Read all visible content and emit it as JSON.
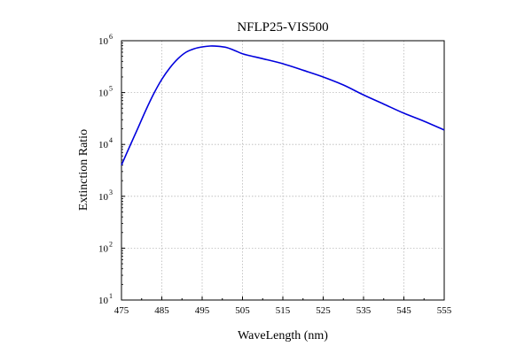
{
  "chart_data": {
    "type": "line",
    "title": "NFLP25-VIS500",
    "xlabel": "WaveLength (nm)",
    "ylabel": "Extinction Ratio",
    "xlim": [
      475,
      555
    ],
    "ylim": [
      10,
      1000000
    ],
    "yscale": "log",
    "grid": true,
    "grid_style": "dotted",
    "x_ticks": [
      475,
      485,
      495,
      505,
      515,
      525,
      535,
      545,
      555
    ],
    "y_ticks": [
      {
        "base": "10",
        "exp": "1",
        "value": 10
      },
      {
        "base": "10",
        "exp": "2",
        "value": 100
      },
      {
        "base": "10",
        "exp": "3",
        "value": 1000
      },
      {
        "base": "10",
        "exp": "4",
        "value": 10000
      },
      {
        "base": "10",
        "exp": "5",
        "value": 100000
      },
      {
        "base": "10",
        "exp": "6",
        "value": 1000000
      }
    ],
    "series": [
      {
        "color": "#0000dd",
        "x": [
          475,
          477,
          479,
          481,
          483,
          485,
          487,
          489,
          491,
          493,
          495,
          497,
          499,
          501,
          503,
          505,
          507,
          510,
          515,
          520,
          525,
          530,
          535,
          540,
          545,
          550,
          555
        ],
        "y": [
          4000,
          9000,
          20000,
          45000,
          95000,
          180000,
          300000,
          450000,
          600000,
          700000,
          760000,
          790000,
          780000,
          740000,
          650000,
          560000,
          510000,
          450000,
          360000,
          270000,
          200000,
          140000,
          90000,
          60000,
          40000,
          28000,
          19000
        ]
      }
    ]
  }
}
